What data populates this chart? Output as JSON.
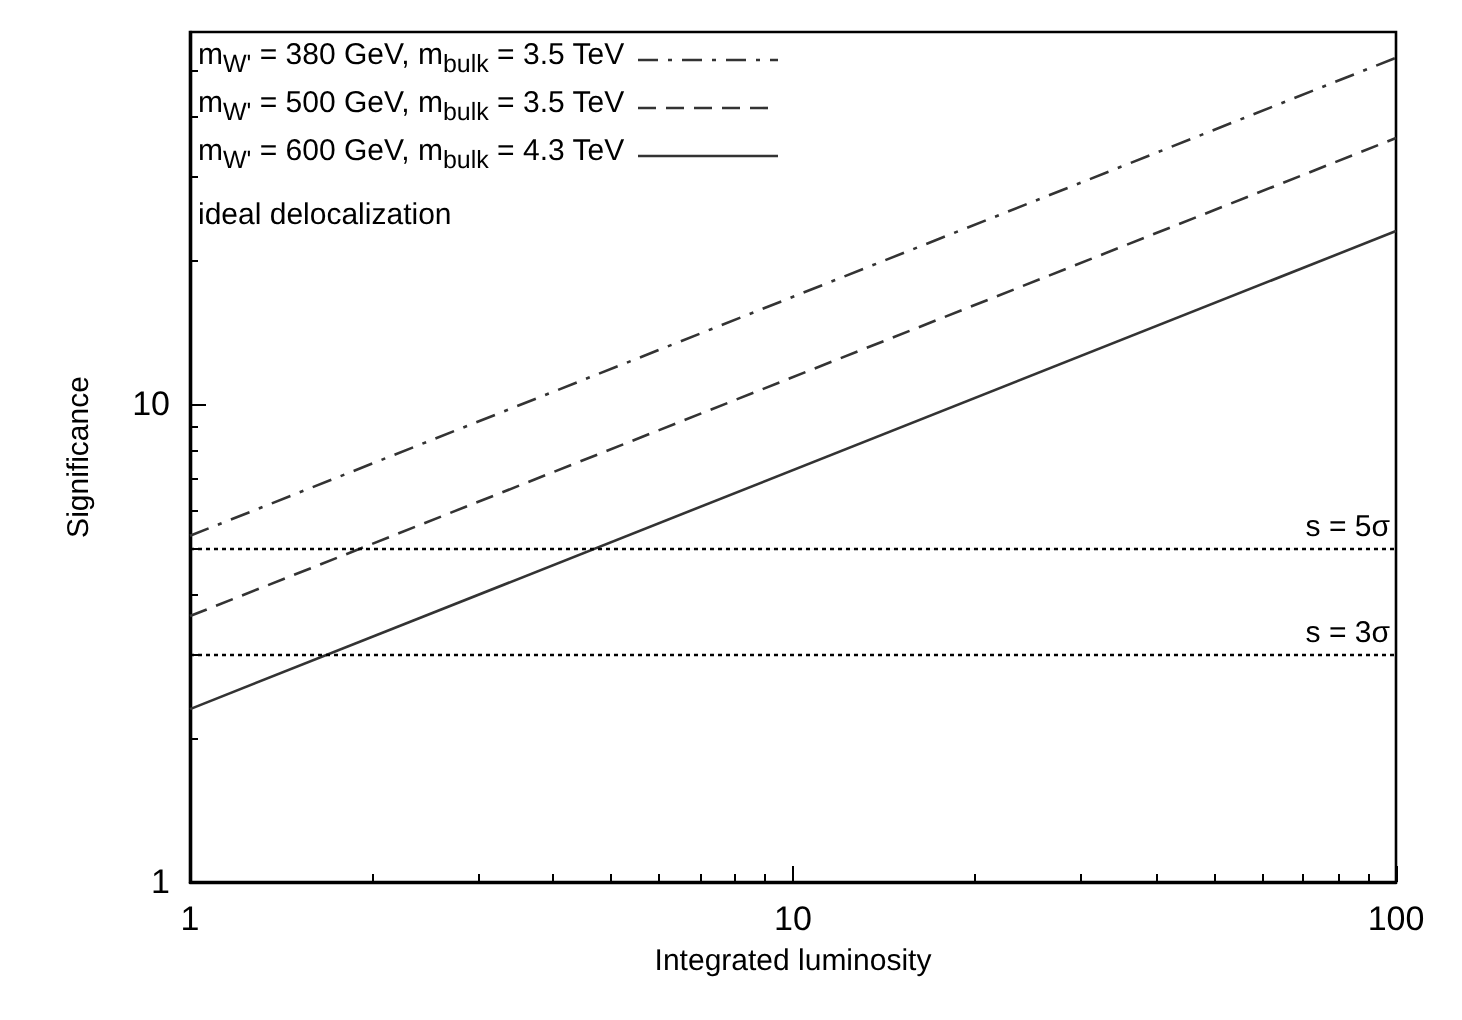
{
  "chart_data": {
    "type": "line",
    "xlabel": "Integrated luminosity",
    "ylabel": "Significance",
    "x": [
      1,
      100
    ],
    "series": [
      {
        "name": "m$_{W'}$ = 380 GeV,  m$_{bulk}$ = 3.5 TeV",
        "color": "#333333",
        "line_style": "dashdot",
        "values": [
          5.3,
          53
        ]
      },
      {
        "name": "m$_{W'}$ = 500 GeV,  m$_{bulk}$ = 3.5 TeV",
        "color": "#333333",
        "line_style": "dashed",
        "values": [
          3.6,
          36
        ]
      },
      {
        "name": "m$_{W'}$ = 600 GeV,  m$_{bulk}$ = 4.3 TeV",
        "color": "#333333",
        "line_style": "solid",
        "values": [
          2.3,
          23
        ]
      }
    ],
    "log": "xy",
    "xlim": [
      1,
      100
    ],
    "xticks": [
      1,
      10,
      100
    ],
    "ylim": [
      1,
      60
    ],
    "yticks": [
      1,
      10
    ],
    "ref_lines": [
      {
        "axis": "y",
        "value": 5,
        "label": "s = 5σ",
        "line_style": "dotted",
        "color": "#000000"
      },
      {
        "axis": "y",
        "value": 3,
        "label": "s = 3σ",
        "line_style": "dotted",
        "color": "#000000"
      }
    ],
    "annotations": [
      "ideal delocalization"
    ],
    "legend": "top left",
    "marker": "none",
    "grid": false
  }
}
